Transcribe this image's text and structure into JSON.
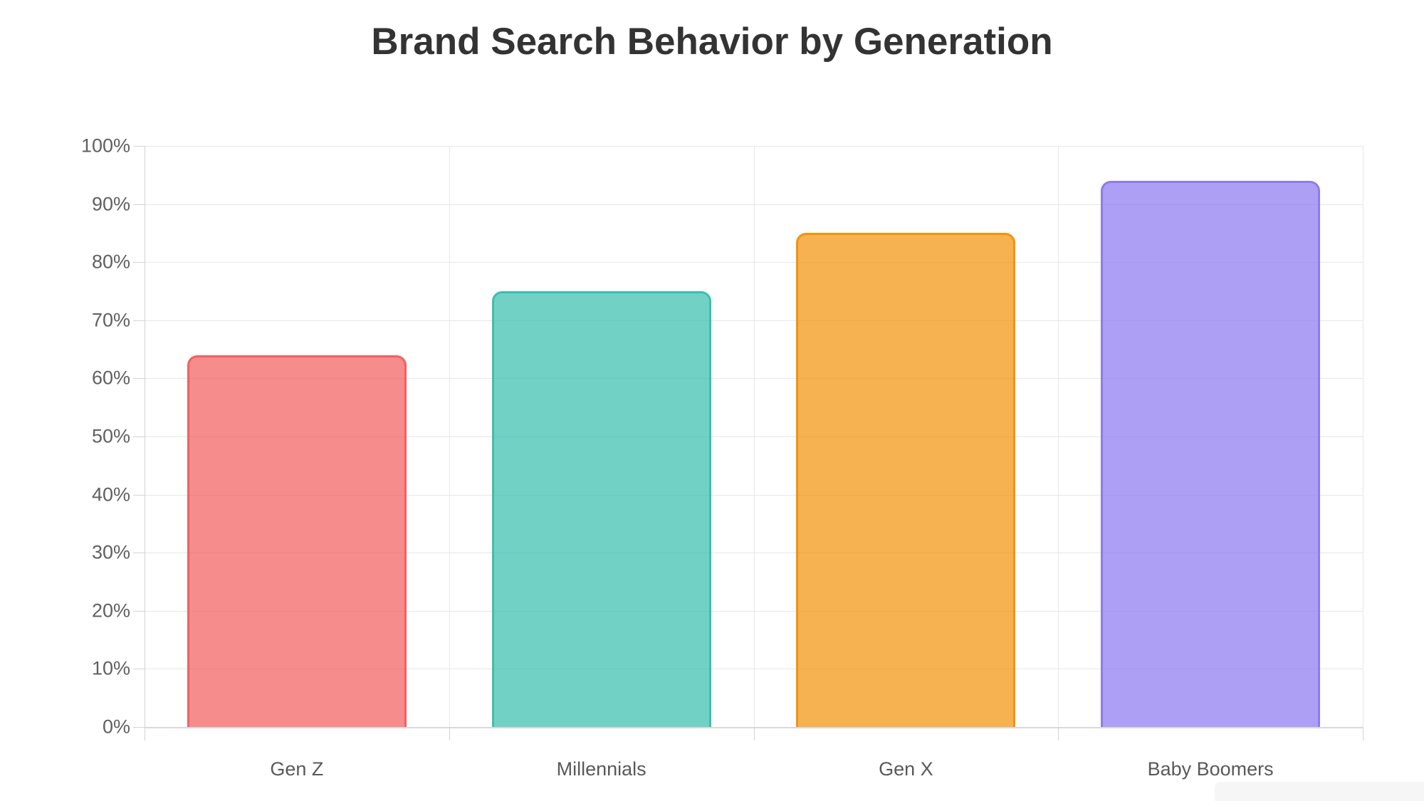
{
  "chart_data": {
    "type": "bar",
    "title": "Brand Search Behavior by Generation",
    "categories": [
      "Gen Z",
      "Millennials",
      "Gen X",
      "Baby Boomers"
    ],
    "values": [
      64,
      75,
      85,
      94
    ],
    "value_unit": "%",
    "ylim": [
      0,
      100
    ],
    "y_ticks": [
      0,
      10,
      20,
      30,
      40,
      50,
      60,
      70,
      80,
      90,
      100
    ],
    "y_tick_suffix": "%",
    "grid": true,
    "legend_position": "none",
    "bar_colors": [
      {
        "fill": "rgba(242,95,95,0.72)",
        "border": "#f25f5f"
      },
      {
        "fill": "rgba(60,191,174,0.72)",
        "border": "#3cbfae"
      },
      {
        "fill": "rgba(242,147,13,0.72)",
        "border": "#f2930d"
      },
      {
        "fill": "rgba(141,123,240,0.72)",
        "border": "#8d7bf0"
      }
    ],
    "colors": {
      "title": "#333333",
      "axis_label": "#606060",
      "gridline": "#e7e7e7",
      "axis_line": "#d4d4d4",
      "background": "#ffffff"
    }
  }
}
